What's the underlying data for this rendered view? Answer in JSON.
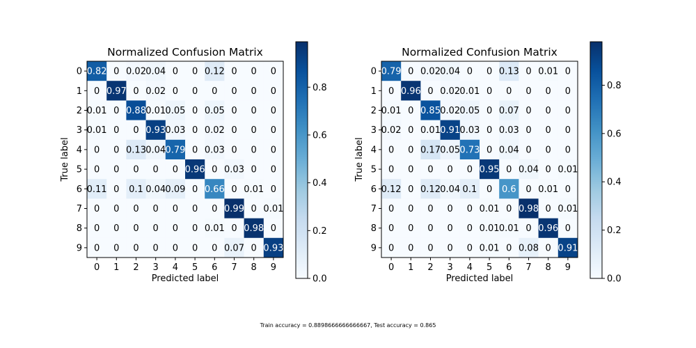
{
  "footer": {
    "caption": "Train accuracy = 0.8898666666666667, Test accuracy = 0.865"
  },
  "chart_data": [
    {
      "type": "heatmap",
      "title": "Normalized Confusion Matrix",
      "xlabel": "Predicted label",
      "ylabel": "True label",
      "x_ticks": [
        "0",
        "1",
        "2",
        "3",
        "4",
        "5",
        "6",
        "7",
        "8",
        "9"
      ],
      "y_ticks": [
        "0",
        "1",
        "2",
        "3",
        "4",
        "5",
        "6",
        "7",
        "8",
        "9"
      ],
      "colormap": "Blues",
      "color_range": [
        0.0,
        0.99
      ],
      "colorbar_ticks": [
        "0.0",
        "0.2",
        "0.4",
        "0.6",
        "0.8"
      ],
      "colorbar_tick_values": [
        0.0,
        0.2,
        0.4,
        0.6,
        0.8
      ],
      "values": [
        [
          0.82,
          0.0,
          0.02,
          0.04,
          0.0,
          0.0,
          0.12,
          0.0,
          0.0,
          0.0
        ],
        [
          0.0,
          0.97,
          0.0,
          0.02,
          0.0,
          0.0,
          0.0,
          0.0,
          0.0,
          0.0
        ],
        [
          0.01,
          0.0,
          0.88,
          0.01,
          0.05,
          0.0,
          0.05,
          0.0,
          0.0,
          0.0
        ],
        [
          0.01,
          0.0,
          0.0,
          0.93,
          0.03,
          0.0,
          0.02,
          0.0,
          0.0,
          0.0
        ],
        [
          0.0,
          0.0,
          0.13,
          0.04,
          0.79,
          0.0,
          0.03,
          0.0,
          0.0,
          0.0
        ],
        [
          0.0,
          0.0,
          0.0,
          0.0,
          0.0,
          0.96,
          0.0,
          0.03,
          0.0,
          0.0
        ],
        [
          0.11,
          0.0,
          0.1,
          0.04,
          0.09,
          0.0,
          0.66,
          0.0,
          0.01,
          0.0
        ],
        [
          0.0,
          0.0,
          0.0,
          0.0,
          0.0,
          0.0,
          0.0,
          0.99,
          0.0,
          0.01
        ],
        [
          0.0,
          0.0,
          0.0,
          0.0,
          0.0,
          0.0,
          0.01,
          0.0,
          0.98,
          0.0
        ],
        [
          0.0,
          0.0,
          0.0,
          0.0,
          0.0,
          0.0,
          0.0,
          0.07,
          0.0,
          0.93
        ]
      ]
    },
    {
      "type": "heatmap",
      "title": "Normalized Confusion Matrix",
      "xlabel": "Predicted label",
      "ylabel": "True label",
      "x_ticks": [
        "0",
        "1",
        "2",
        "3",
        "4",
        "5",
        "6",
        "7",
        "8",
        "9"
      ],
      "y_ticks": [
        "0",
        "1",
        "2",
        "3",
        "4",
        "5",
        "6",
        "7",
        "8",
        "9"
      ],
      "colormap": "Blues",
      "color_range": [
        0.0,
        0.98
      ],
      "colorbar_ticks": [
        "0.0",
        "0.2",
        "0.4",
        "0.6",
        "0.8"
      ],
      "colorbar_tick_values": [
        0.0,
        0.2,
        0.4,
        0.6,
        0.8
      ],
      "values": [
        [
          0.79,
          0.0,
          0.02,
          0.04,
          0.0,
          0.0,
          0.13,
          0.0,
          0.01,
          0.0
        ],
        [
          0.0,
          0.96,
          0.0,
          0.02,
          0.01,
          0.0,
          0.0,
          0.0,
          0.0,
          0.0
        ],
        [
          0.01,
          0.0,
          0.85,
          0.02,
          0.05,
          0.0,
          0.07,
          0.0,
          0.0,
          0.0
        ],
        [
          0.02,
          0.0,
          0.01,
          0.91,
          0.03,
          0.0,
          0.03,
          0.0,
          0.0,
          0.0
        ],
        [
          0.0,
          0.0,
          0.17,
          0.05,
          0.73,
          0.0,
          0.04,
          0.0,
          0.0,
          0.0
        ],
        [
          0.0,
          0.0,
          0.0,
          0.0,
          0.0,
          0.95,
          0.0,
          0.04,
          0.0,
          0.01
        ],
        [
          0.12,
          0.0,
          0.12,
          0.04,
          0.1,
          0.0,
          0.6,
          0.0,
          0.01,
          0.0
        ],
        [
          0.0,
          0.0,
          0.0,
          0.0,
          0.0,
          0.01,
          0.0,
          0.98,
          0.0,
          0.01
        ],
        [
          0.0,
          0.0,
          0.0,
          0.0,
          0.0,
          0.01,
          0.01,
          0.0,
          0.96,
          0.0
        ],
        [
          0.0,
          0.0,
          0.0,
          0.0,
          0.0,
          0.01,
          0.0,
          0.08,
          0.0,
          0.91
        ]
      ]
    }
  ]
}
